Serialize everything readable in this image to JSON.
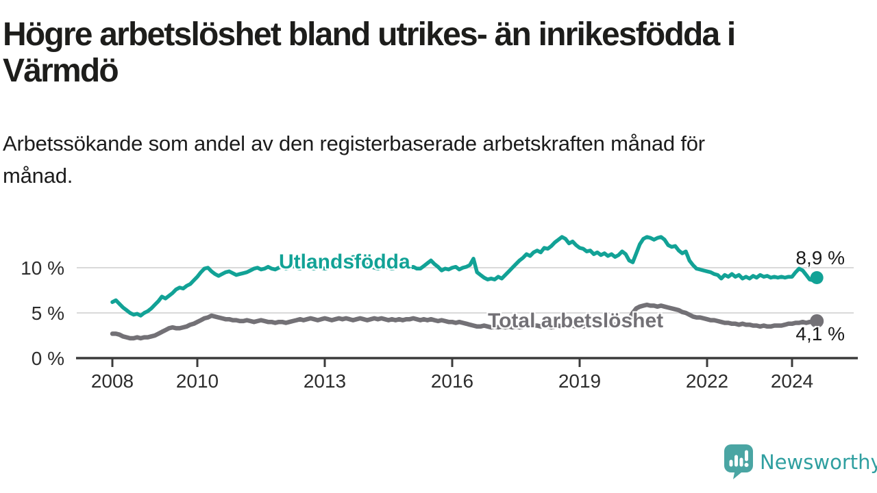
{
  "header": {
    "title_lines": [
      "Högre arbetslöshet bland utrikes- än inrikesfödda i",
      "Värmdö"
    ],
    "subtitle_lines": [
      "Arbetssökande som andel av den registerbaserade arbetskraften månad för",
      "månad."
    ]
  },
  "chart_data": {
    "type": "line",
    "title": "Högre arbetslöshet bland utrikes- än inrikesfödda i Värmdö",
    "subtitle": "Arbetssökande som andel av den registerbaserade arbetskraften månad för månad.",
    "unit": "%",
    "x_start_year": 2008,
    "points_per_year": 12,
    "x_ticks": [
      2008,
      2010,
      2013,
      2016,
      2019,
      2022,
      2024
    ],
    "y_ticks": [
      {
        "value": 0,
        "label": "0 %"
      },
      {
        "value": 5,
        "label": "5 %"
      },
      {
        "value": 10,
        "label": "10 %"
      }
    ],
    "ylim": [
      0,
      14.6
    ],
    "grid": "horizontal",
    "legend_position": "inline-labels",
    "series": [
      {
        "name": "Utlandsfödda",
        "color": "#12a296",
        "end_label": "8,9 %",
        "last_value": 8.9,
        "values": [
          6.2,
          6.4,
          6.0,
          5.6,
          5.3,
          5.0,
          4.8,
          4.9,
          4.7,
          5.0,
          5.2,
          5.5,
          5.9,
          6.3,
          6.8,
          6.6,
          6.9,
          7.2,
          7.6,
          7.8,
          7.7,
          8.0,
          8.2,
          8.6,
          9.0,
          9.5,
          9.9,
          10.0,
          9.6,
          9.3,
          9.1,
          9.3,
          9.5,
          9.6,
          9.4,
          9.2,
          9.3,
          9.4,
          9.5,
          9.7,
          9.9,
          10.0,
          9.8,
          9.9,
          10.1,
          9.9,
          9.8,
          10.0,
          10.1,
          9.9,
          10.0,
          10.2,
          10.0,
          9.9,
          10.1,
          10.2,
          10.0,
          9.9,
          10.1,
          10.0,
          9.9,
          10.0,
          10.2,
          10.3,
          10.2,
          10.4,
          10.6,
          10.9,
          11.2,
          11.1,
          10.8,
          10.5,
          10.3,
          10.1,
          10.0,
          9.9,
          10.0,
          10.1,
          10.0,
          9.9,
          10.0,
          10.1,
          10.0,
          10.0,
          10.0,
          10.1,
          9.9,
          9.9,
          10.2,
          10.5,
          10.8,
          10.4,
          10.1,
          9.7,
          9.9,
          9.8,
          10.0,
          10.1,
          9.8,
          10.0,
          10.1,
          10.3,
          11.0,
          9.5,
          9.2,
          8.9,
          8.7,
          8.8,
          8.7,
          9.0,
          8.8,
          9.2,
          9.6,
          10.0,
          10.4,
          10.8,
          11.1,
          11.5,
          11.3,
          11.7,
          11.9,
          11.7,
          12.2,
          12.1,
          12.4,
          12.8,
          13.1,
          13.4,
          13.2,
          12.7,
          12.9,
          12.5,
          12.2,
          12.1,
          11.8,
          11.9,
          11.5,
          11.7,
          11.4,
          11.6,
          11.3,
          11.5,
          11.2,
          11.4,
          11.8,
          11.5,
          10.8,
          10.6,
          11.6,
          12.6,
          13.2,
          13.4,
          13.3,
          13.1,
          13.3,
          13.4,
          13.1,
          12.5,
          12.3,
          12.4,
          11.9,
          11.6,
          11.8,
          10.8,
          10.3,
          9.9,
          9.8,
          9.7,
          9.6,
          9.5,
          9.3,
          9.2,
          8.8,
          9.2,
          9.0,
          9.3,
          9.0,
          9.2,
          8.8,
          9.0,
          8.8,
          9.1,
          8.9,
          9.2,
          9.0,
          9.1,
          8.9,
          9.0,
          8.9,
          9.0,
          8.9,
          9.0,
          9.0,
          9.5,
          9.9,
          9.7,
          9.2,
          8.7,
          8.6,
          8.9
        ]
      },
      {
        "name": "Total arbetslöshet",
        "color": "#737176",
        "end_label": "4,1 %",
        "last_value": 4.1,
        "values": [
          2.7,
          2.7,
          2.6,
          2.4,
          2.3,
          2.2,
          2.2,
          2.3,
          2.2,
          2.3,
          2.3,
          2.4,
          2.5,
          2.7,
          2.9,
          3.1,
          3.3,
          3.4,
          3.3,
          3.3,
          3.4,
          3.5,
          3.7,
          3.8,
          4.0,
          4.2,
          4.4,
          4.5,
          4.7,
          4.6,
          4.5,
          4.4,
          4.3,
          4.3,
          4.2,
          4.2,
          4.1,
          4.1,
          4.2,
          4.1,
          4.0,
          4.1,
          4.2,
          4.1,
          4.0,
          4.0,
          3.9,
          4.0,
          4.0,
          3.9,
          4.0,
          4.1,
          4.2,
          4.3,
          4.2,
          4.3,
          4.4,
          4.3,
          4.2,
          4.3,
          4.4,
          4.3,
          4.2,
          4.3,
          4.4,
          4.3,
          4.4,
          4.3,
          4.2,
          4.3,
          4.4,
          4.3,
          4.2,
          4.3,
          4.4,
          4.3,
          4.4,
          4.3,
          4.2,
          4.3,
          4.2,
          4.3,
          4.2,
          4.3,
          4.3,
          4.4,
          4.3,
          4.2,
          4.3,
          4.2,
          4.3,
          4.2,
          4.1,
          4.2,
          4.1,
          4.0,
          4.0,
          3.9,
          4.0,
          3.9,
          3.8,
          3.7,
          3.6,
          3.5,
          3.5,
          3.6,
          3.5,
          3.4,
          3.5,
          3.4,
          3.5,
          3.4,
          3.5,
          3.4,
          3.5,
          3.4,
          3.5,
          3.6,
          3.5,
          3.6,
          3.6,
          3.5,
          3.6,
          3.5,
          3.4,
          3.5,
          3.6,
          3.5,
          3.6,
          3.5,
          3.6,
          3.5,
          3.6,
          3.5,
          3.6,
          3.6,
          3.7,
          3.6,
          3.7,
          3.6,
          3.7,
          3.6,
          3.7,
          3.7,
          3.8,
          3.9,
          4.3,
          5.0,
          5.5,
          5.7,
          5.8,
          5.9,
          5.8,
          5.8,
          5.7,
          5.8,
          5.7,
          5.6,
          5.5,
          5.4,
          5.3,
          5.1,
          5.0,
          4.8,
          4.6,
          4.5,
          4.5,
          4.4,
          4.3,
          4.2,
          4.2,
          4.1,
          4.0,
          3.9,
          3.9,
          3.8,
          3.8,
          3.7,
          3.8,
          3.7,
          3.7,
          3.6,
          3.6,
          3.5,
          3.6,
          3.5,
          3.5,
          3.6,
          3.6,
          3.6,
          3.7,
          3.8,
          3.8,
          3.9,
          3.9,
          4.0,
          3.9,
          4.0,
          4.0,
          4.1
        ]
      }
    ]
  },
  "branding": {
    "name": "Newsworthy",
    "color": "#2f9fa0",
    "icon": "newsworthy-bubble-chart-icon",
    "icon_color": "#4aa5a3"
  }
}
